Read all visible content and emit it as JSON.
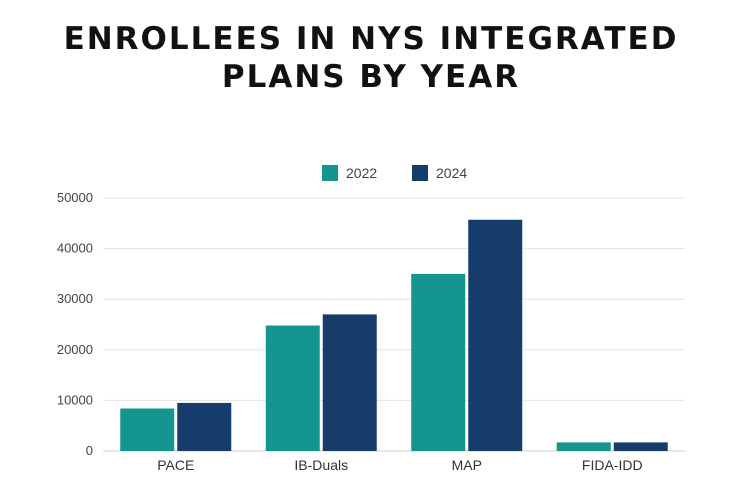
{
  "chart_data": {
    "type": "bar",
    "title_lines": [
      "ENROLLEES IN NYS INTEGRATED",
      "PLANS BY YEAR"
    ],
    "categories": [
      "PACE",
      "IB-Duals",
      "MAP",
      "FIDA-IDD"
    ],
    "series": [
      {
        "name": "2022",
        "color": "#14958f",
        "values": [
          8400,
          24800,
          35000,
          1700
        ]
      },
      {
        "name": "2024",
        "color": "#153c6b",
        "values": [
          9500,
          27000,
          45700,
          1700
        ]
      }
    ],
    "ylim": [
      0,
      50000
    ],
    "yticks": [
      0,
      10000,
      20000,
      30000,
      40000,
      50000
    ],
    "grid": true,
    "legend_position": "top-center"
  }
}
